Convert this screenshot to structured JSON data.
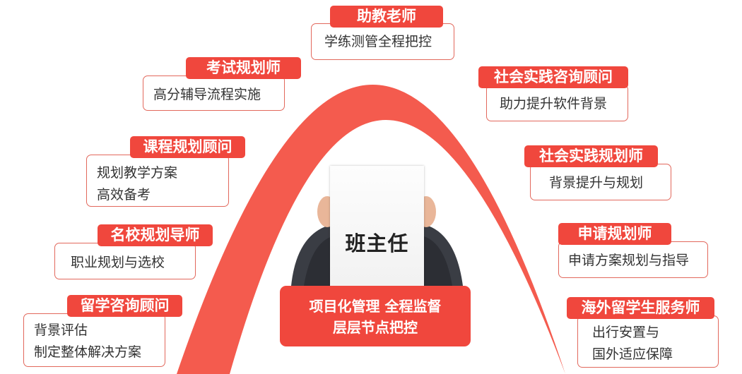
{
  "center": {
    "title": "班主任",
    "line1": "项目化管理  全程监督",
    "line2": "层层节点把控"
  },
  "colors": {
    "accent": "#f0473d",
    "arc": "#f45b4e",
    "border": "#e2685c"
  },
  "roles": {
    "assistant_teacher": {
      "title": "助教老师",
      "lines": [
        "学练测管全程把控"
      ]
    },
    "exam_planner": {
      "title": "考试规划师",
      "lines": [
        "高分辅导流程实施"
      ]
    },
    "course_consultant": {
      "title": "课程规划顾问",
      "lines": [
        "规划教学方案",
        "高效备考"
      ]
    },
    "school_planner": {
      "title": "名校规划导师",
      "lines": [
        "职业规划与选校"
      ]
    },
    "study_abroad_consultant": {
      "title": "留学咨询顾问",
      "lines": [
        "背景评估",
        "制定整体解决方案"
      ]
    },
    "social_practice_consultant": {
      "title": "社会实践咨询顾问",
      "lines": [
        "助力提升软件背景"
      ]
    },
    "social_practice_planner": {
      "title": "社会实践规划师",
      "lines": [
        "背景提升与规划"
      ]
    },
    "application_planner": {
      "title": "申请规划师",
      "lines": [
        "申请方案规划与指导"
      ]
    },
    "overseas_service": {
      "title": "海外留学生服务师",
      "lines": [
        "出行安置与",
        "国外适应保障"
      ]
    }
  }
}
